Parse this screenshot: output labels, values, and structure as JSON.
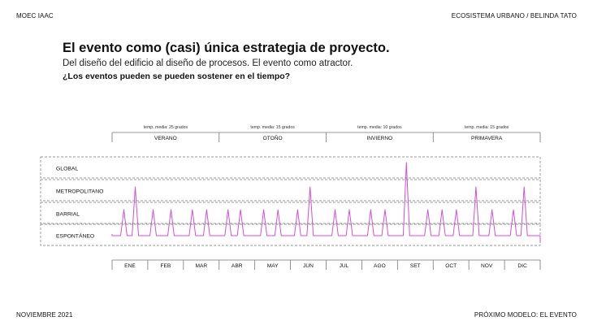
{
  "header": {
    "left": "MOEC IAAC",
    "right": "ECOSISTEMA URBANO / BELINDA TATO"
  },
  "footer": {
    "left": "NOVIEMBRE 2021",
    "right": "PRÓXIMO MODELO: EL EVENTO"
  },
  "title": "El evento como (casi) única estrategia de proyecto.",
  "subtitle": "Del diseño del edificio al diseño de procesos. El evento como atractor.",
  "question": "¿Los eventos pueden se pueden sostener en el tiempo?",
  "colors": {
    "line": "#d14fd6",
    "grid": "#777777",
    "text": "#111111"
  },
  "chart_data": {
    "type": "line",
    "seasons": [
      {
        "name": "VERANO",
        "temp": "temp. media: 25 grados",
        "months": [
          "ENE",
          "FEB",
          "MAR"
        ]
      },
      {
        "name": "OTOÑO",
        "temp": "temp. media: 15 grados",
        "months": [
          "ABR",
          "MAY",
          "JUN"
        ]
      },
      {
        "name": "INVIERNO",
        "temp": "temp. media: 10 grados",
        "months": [
          "JUL",
          "AGO",
          "SET"
        ]
      },
      {
        "name": "PRIMAVERA",
        "temp": "temp. media: 15 grados",
        "months": [
          "OCT",
          "NOV",
          "DIC"
        ]
      }
    ],
    "categories": [
      "ENE",
      "FEB",
      "MAR",
      "ABR",
      "MAY",
      "JUN",
      "JUL",
      "AGO",
      "SET",
      "OCT",
      "NOV",
      "DIC"
    ],
    "levels": [
      "ESPONTÁNEO",
      "BARRIAL",
      "METROPOLITANO",
      "GLOBAL"
    ],
    "series": [
      {
        "peaks": [
          {
            "x": 0.33,
            "level": 1
          },
          {
            "x": 0.65,
            "level": 2
          },
          {
            "x": 1.15,
            "level": 1
          },
          {
            "x": 1.65,
            "level": 1
          },
          {
            "x": 2.25,
            "level": 1
          },
          {
            "x": 2.65,
            "level": 1
          },
          {
            "x": 3.25,
            "level": 1
          },
          {
            "x": 3.6,
            "level": 1
          },
          {
            "x": 4.25,
            "level": 1
          },
          {
            "x": 4.65,
            "level": 1
          },
          {
            "x": 5.2,
            "level": 1
          },
          {
            "x": 5.55,
            "level": 2
          },
          {
            "x": 6.25,
            "level": 1
          },
          {
            "x": 6.65,
            "level": 1
          },
          {
            "x": 7.25,
            "level": 1
          },
          {
            "x": 7.65,
            "level": 1
          },
          {
            "x": 8.25,
            "level": 3
          },
          {
            "x": 8.85,
            "level": 1
          },
          {
            "x": 9.25,
            "level": 1
          },
          {
            "x": 9.65,
            "level": 1
          },
          {
            "x": 10.2,
            "level": 2
          },
          {
            "x": 10.65,
            "level": 1
          },
          {
            "x": 11.25,
            "level": 1
          },
          {
            "x": 11.55,
            "level": 2
          }
        ]
      }
    ]
  }
}
